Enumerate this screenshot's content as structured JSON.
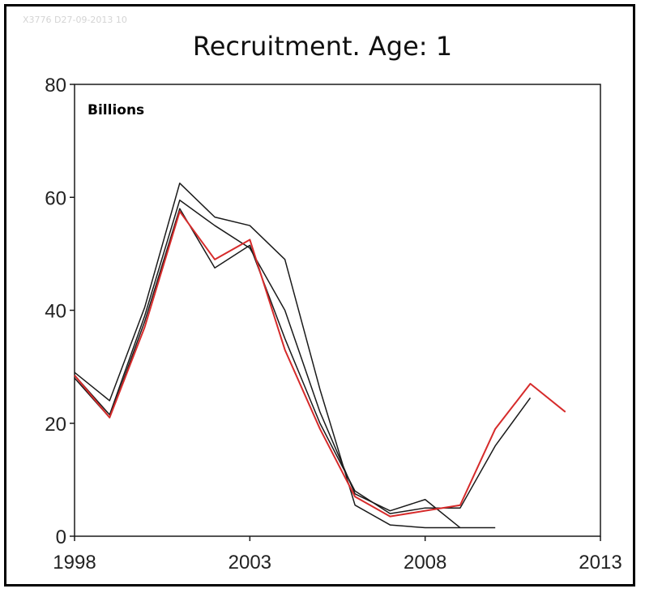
{
  "chart_data": {
    "type": "line",
    "title": "Recruitment. Age: 1",
    "stamp": "X3776 D27-09-2013 10",
    "unit_label": "Billions",
    "xlabel": "",
    "ylabel": "",
    "xlim": [
      1998,
      2013
    ],
    "ylim": [
      0,
      80
    ],
    "x_ticks": [
      1998,
      2003,
      2008,
      2013
    ],
    "y_ticks": [
      0,
      20,
      40,
      60,
      80
    ],
    "grid": false,
    "legend": "none",
    "series": [
      {
        "color": "#d62b2b",
        "points": [
          [
            1998,
            28.5
          ],
          [
            1999,
            21
          ],
          [
            2000,
            37
          ],
          [
            2001,
            57.5
          ],
          [
            2002,
            49
          ],
          [
            2003,
            52.5
          ],
          [
            2004,
            33
          ],
          [
            2005,
            19
          ],
          [
            2006,
            7
          ],
          [
            2007,
            3.5
          ],
          [
            2008,
            4.5
          ],
          [
            2009,
            5.5
          ],
          [
            2010,
            19
          ],
          [
            2011,
            27
          ],
          [
            2012,
            22
          ]
        ]
      },
      {
        "color": "#1a1a1a",
        "points": [
          [
            1998,
            29
          ],
          [
            1999,
            24
          ],
          [
            2000,
            40.5
          ],
          [
            2001,
            62.5
          ],
          [
            2002,
            56.5
          ],
          [
            2003,
            55
          ],
          [
            2004,
            49
          ],
          [
            2005,
            26
          ],
          [
            2006,
            5.5
          ],
          [
            2007,
            2
          ],
          [
            2008,
            1.5
          ],
          [
            2009,
            1.5
          ],
          [
            2010,
            1.5
          ]
        ]
      },
      {
        "color": "#1a1a1a",
        "points": [
          [
            1998,
            28.5
          ],
          [
            1999,
            21.5
          ],
          [
            2000,
            39
          ],
          [
            2001,
            59.5
          ],
          [
            2002,
            55
          ],
          [
            2003,
            51
          ],
          [
            2004,
            40
          ],
          [
            2005,
            22
          ],
          [
            2006,
            7.5
          ],
          [
            2007,
            4.5
          ],
          [
            2008,
            6.5
          ],
          [
            2009,
            1.5
          ]
        ]
      },
      {
        "color": "#1a1a1a",
        "points": [
          [
            1998,
            28
          ],
          [
            1999,
            21
          ],
          [
            2000,
            38
          ],
          [
            2001,
            58
          ],
          [
            2002,
            47.5
          ],
          [
            2003,
            51.5
          ],
          [
            2004,
            35
          ],
          [
            2005,
            20
          ],
          [
            2006,
            8
          ],
          [
            2007,
            4
          ],
          [
            2008,
            5
          ],
          [
            2009,
            5
          ],
          [
            2010,
            16
          ],
          [
            2011,
            24.5
          ]
        ]
      }
    ]
  }
}
